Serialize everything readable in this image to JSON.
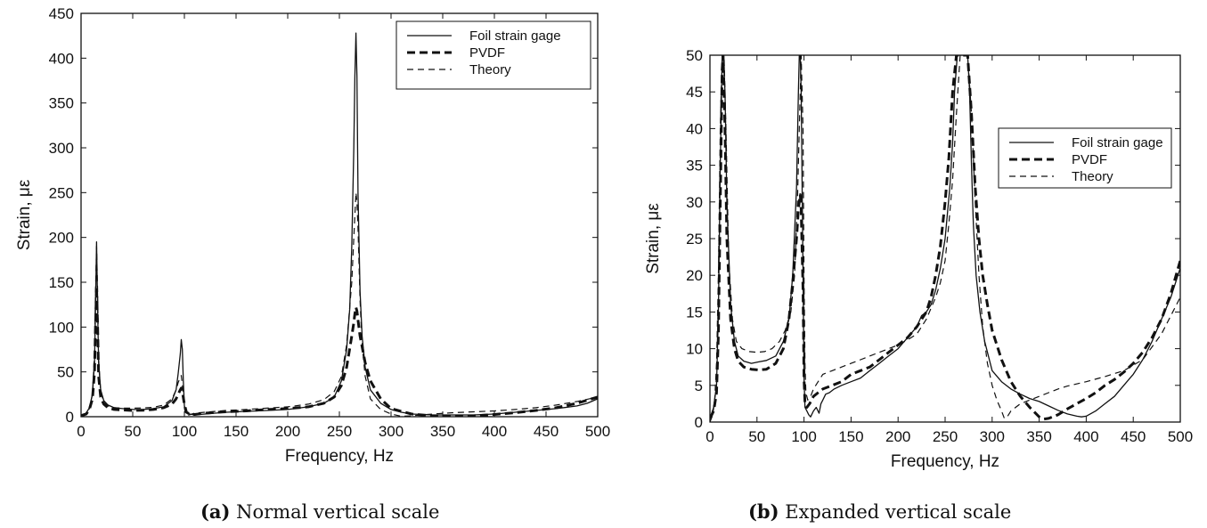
{
  "chart_data": [
    {
      "type": "line",
      "xlabel": "Frequency, Hz",
      "ylabel": "Strain, με",
      "xlim": [
        0,
        500
      ],
      "ylim": [
        0,
        450
      ],
      "xticks": [
        "0",
        "50",
        "100",
        "150",
        "200",
        "250",
        "300",
        "350",
        "400",
        "450",
        "500"
      ],
      "yticks": [
        "0",
        "50",
        "100",
        "150",
        "200",
        "250",
        "300",
        "350",
        "400",
        "450"
      ],
      "grid": false,
      "legend": "top-right",
      "caption_letter": "(a)",
      "caption_text": "Normal vertical scale",
      "series": [
        {
          "name": "Foil strain gage",
          "style": "solid",
          "x": [
            0,
            5,
            8,
            11,
            13,
            14,
            15,
            16,
            17,
            19,
            22,
            26,
            32,
            40,
            50,
            60,
            70,
            80,
            88,
            92,
            94,
            96,
            97,
            98,
            99,
            100,
            102,
            105,
            110,
            120,
            140,
            160,
            180,
            200,
            220,
            235,
            245,
            252,
            257,
            260,
            262,
            264,
            265,
            266,
            267,
            268,
            270,
            272,
            275,
            280,
            290,
            300,
            310,
            320,
            340,
            360,
            380,
            400,
            420,
            440,
            460,
            480,
            490,
            500
          ],
          "y": [
            2,
            4,
            10,
            25,
            60,
            120,
            195,
            120,
            60,
            30,
            18,
            13,
            10,
            9,
            8,
            8,
            9,
            11,
            18,
            30,
            48,
            70,
            86,
            75,
            40,
            12,
            5,
            3,
            2,
            3,
            5,
            6,
            7,
            8,
            11,
            15,
            22,
            40,
            75,
            120,
            190,
            300,
            380,
            428,
            380,
            250,
            140,
            90,
            55,
            30,
            15,
            8,
            5,
            3,
            2,
            2,
            2,
            3,
            5,
            7,
            9,
            12,
            15,
            20
          ]
        },
        {
          "name": "PVDF",
          "style": "thick-dashed",
          "x": [
            0,
            5,
            8,
            11,
            13,
            14,
            15,
            16,
            17,
            19,
            22,
            26,
            32,
            40,
            50,
            60,
            70,
            80,
            88,
            92,
            94,
            96,
            97,
            98,
            100,
            102,
            105,
            110,
            120,
            140,
            160,
            180,
            200,
            220,
            235,
            245,
            252,
            257,
            262,
            264,
            265,
            266,
            267,
            268,
            270,
            275,
            280,
            290,
            300,
            320,
            340,
            360,
            380,
            400,
            420,
            440,
            460,
            480,
            500
          ],
          "y": [
            1,
            3,
            8,
            20,
            50,
            100,
            145,
            100,
            45,
            22,
            14,
            10,
            8,
            7.5,
            7,
            7.2,
            8,
            10,
            14,
            20,
            25,
            30,
            32,
            28,
            14,
            5,
            3,
            2.5,
            4,
            5.5,
            6.5,
            8,
            9,
            11,
            15,
            22,
            35,
            55,
            90,
            105,
            115,
            122,
            118,
            108,
            90,
            60,
            40,
            20,
            9,
            3,
            1,
            0.5,
            1,
            2.5,
            4.5,
            7,
            10,
            15,
            22
          ]
        },
        {
          "name": "Theory",
          "style": "thin-dashed",
          "x": [
            0,
            5,
            8,
            11,
            13,
            14,
            15,
            16,
            17,
            19,
            22,
            26,
            32,
            40,
            50,
            60,
            70,
            80,
            88,
            92,
            94,
            96,
            97,
            98,
            100,
            101,
            103,
            106,
            110,
            120,
            140,
            160,
            180,
            200,
            220,
            235,
            245,
            252,
            257,
            262,
            264,
            266,
            267,
            268,
            270,
            272,
            275,
            280,
            290,
            300,
            310,
            320,
            340,
            360,
            380,
            400,
            420,
            440,
            460,
            480,
            500
          ],
          "y": [
            1,
            3,
            9,
            25,
            70,
            140,
            190,
            140,
            65,
            28,
            16,
            12,
            10,
            9.5,
            9.5,
            9.7,
            10.5,
            13,
            20,
            30,
            38,
            44,
            46,
            36,
            10,
            3,
            1.5,
            2.5,
            4,
            5,
            7,
            8,
            9.5,
            11,
            14,
            19,
            28,
            45,
            80,
            150,
            200,
            250,
            240,
            210,
            130,
            80,
            45,
            20,
            8,
            3,
            0.5,
            1,
            3,
            4.5,
            5.5,
            6.5,
            8,
            10,
            13,
            17,
            22
          ]
        }
      ]
    },
    {
      "type": "line",
      "xlabel": "Frequency, Hz",
      "ylabel": "Strain, με",
      "xlim": [
        0,
        500
      ],
      "ylim": [
        0,
        50
      ],
      "xticks": [
        "0",
        "50",
        "100",
        "150",
        "200",
        "250",
        "300",
        "350",
        "400",
        "450",
        "500"
      ],
      "yticks": [
        "0",
        "5",
        "10",
        "15",
        "20",
        "25",
        "30",
        "35",
        "40",
        "45",
        "50"
      ],
      "grid": false,
      "legend": "center-right",
      "caption_letter": "(b)",
      "caption_text": "Expanded vertical scale",
      "series": [
        {
          "name": "Foil strain gage",
          "style": "solid",
          "x": [
            0,
            4,
            7,
            9,
            11,
            13,
            14,
            16,
            18,
            22,
            26,
            30,
            36,
            44,
            52,
            60,
            70,
            78,
            84,
            88,
            92,
            94,
            95,
            96,
            97,
            99,
            100,
            101,
            103,
            105,
            107,
            110,
            113,
            116,
            118,
            120,
            123,
            127,
            132,
            140,
            150,
            160,
            170,
            180,
            190,
            200,
            210,
            220,
            225,
            230,
            235,
            240,
            245,
            250,
            255,
            258,
            260,
            263,
            266,
            270,
            272,
            274,
            276,
            278,
            280,
            283,
            287,
            292,
            300,
            310,
            320,
            330,
            340,
            345,
            350,
            355,
            360,
            370,
            380,
            390,
            395,
            400,
            410,
            420,
            430,
            440,
            450,
            460,
            470,
            480,
            490,
            500
          ],
          "y": [
            0.5,
            2,
            5,
            15,
            35,
            50,
            50,
            45,
            30,
            16,
            11,
            9,
            8.3,
            8,
            8.2,
            8.4,
            9,
            11,
            14,
            20,
            32,
            45,
            50,
            50,
            45,
            20,
            6,
            2,
            1.5,
            1,
            0.7,
            1.5,
            2,
            1.2,
            2.5,
            3,
            3.8,
            4,
            4.5,
            5,
            5.5,
            6,
            7,
            8,
            9,
            10,
            11.5,
            13,
            14.5,
            15,
            16,
            18,
            21,
            25,
            32,
            38,
            45,
            50,
            50,
            50,
            50,
            50,
            45,
            35,
            27,
            20,
            15,
            11,
            7,
            5.5,
            4.5,
            3.8,
            3.2,
            3,
            2.8,
            2.5,
            2.2,
            1.6,
            1.1,
            0.8,
            0.7,
            0.8,
            1.5,
            2.5,
            3.5,
            5,
            6.5,
            8.5,
            11,
            14,
            17,
            21
          ]
        },
        {
          "name": "PVDF",
          "style": "thick-dashed",
          "x": [
            0,
            4,
            7,
            9,
            11,
            13,
            14,
            16,
            18,
            22,
            26,
            30,
            36,
            44,
            52,
            60,
            70,
            78,
            84,
            88,
            92,
            94,
            95,
            96,
            97,
            99,
            100,
            101,
            103,
            106,
            110,
            115,
            120,
            130,
            140,
            150,
            160,
            170,
            180,
            190,
            200,
            210,
            220,
            230,
            235,
            240,
            245,
            250,
            254,
            258,
            262,
            266,
            270,
            274,
            278,
            282,
            286,
            290,
            295,
            300,
            310,
            320,
            330,
            340,
            350,
            355,
            360,
            370,
            380,
            390,
            400,
            410,
            420,
            430,
            440,
            450,
            460,
            470,
            480,
            490,
            500
          ],
          "y": [
            0.5,
            1.5,
            4,
            12,
            30,
            48,
            50,
            40,
            25,
            14,
            10,
            8.3,
            7.5,
            7.2,
            7.1,
            7.2,
            8,
            10,
            14,
            19,
            25,
            29,
            30,
            31,
            29,
            18,
            6,
            2.5,
            2,
            2.5,
            3.5,
            4,
            4.5,
            5,
            5.5,
            6.5,
            7,
            7.5,
            8.5,
            9.5,
            10.5,
            11.5,
            13,
            15,
            17,
            20,
            24,
            30,
            36,
            45,
            50,
            50,
            50,
            50,
            42,
            32,
            25,
            20,
            16,
            12.5,
            8.5,
            5.5,
            3.5,
            2,
            0.7,
            0.4,
            0.5,
            1,
            1.8,
            2.5,
            3.2,
            4,
            5,
            5.8,
            6.8,
            8,
            9.5,
            11.5,
            14,
            17.5,
            22
          ]
        },
        {
          "name": "Theory",
          "style": "thin-dashed",
          "x": [
            0,
            3,
            5,
            7,
            9,
            11,
            13,
            15,
            17,
            20,
            24,
            28,
            34,
            42,
            50,
            58,
            66,
            74,
            80,
            86,
            90,
            93,
            95,
            96,
            97,
            99,
            100,
            101,
            102,
            104,
            107,
            110,
            115,
            120,
            130,
            140,
            150,
            160,
            170,
            180,
            190,
            200,
            210,
            220,
            230,
            240,
            245,
            250,
            254,
            258,
            262,
            266,
            270,
            274,
            278,
            282,
            286,
            290,
            295,
            300,
            305,
            310,
            313,
            316,
            320,
            330,
            340,
            350,
            360,
            370,
            380,
            400,
            420,
            440,
            460,
            480,
            500
          ],
          "y": [
            0,
            1,
            3,
            8,
            20,
            40,
            50,
            50,
            40,
            22,
            14,
            11,
            10,
            9.6,
            9.5,
            9.6,
            10,
            11,
            12.5,
            15,
            20,
            30,
            40,
            45,
            50,
            40,
            20,
            8,
            4,
            3,
            3.5,
            4.5,
            5.5,
            6.5,
            7,
            7.5,
            8,
            8.5,
            9,
            9.5,
            10,
            10.5,
            11.2,
            12,
            14,
            17,
            19,
            22,
            27,
            33,
            42,
            50,
            50,
            50,
            42,
            30,
            20,
            13,
            8,
            5,
            3,
            1.5,
            0.5,
            0.7,
            1.5,
            2.5,
            3,
            3.5,
            4,
            4.5,
            4.9,
            5.5,
            6.2,
            7,
            8.5,
            12,
            17
          ]
        }
      ]
    }
  ]
}
